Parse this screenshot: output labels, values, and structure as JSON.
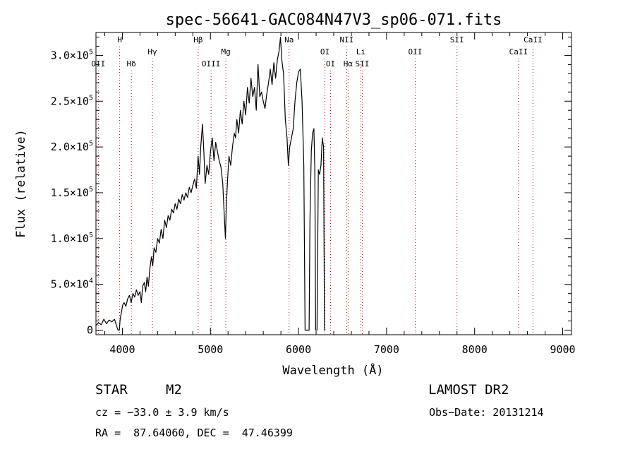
{
  "chart_data": {
    "type": "line",
    "title": "spec-56641-GAC084N47V3_sp06-071.fits",
    "xlabel": "Wavelength (Å)",
    "ylabel": "Flux (relative)",
    "xlim": [
      3700,
      9100
    ],
    "ylim": [
      -5000,
      325000
    ],
    "x_ticks": [
      {
        "value": 4000,
        "label": "4000"
      },
      {
        "value": 5000,
        "label": "5000"
      },
      {
        "value": 6000,
        "label": "6000"
      },
      {
        "value": 7000,
        "label": "7000"
      },
      {
        "value": 8000,
        "label": "8000"
      },
      {
        "value": 9000,
        "label": "9000"
      }
    ],
    "y_ticks": [
      {
        "value": 0,
        "mant": "0",
        "exp": ""
      },
      {
        "value": 50000,
        "mant": "5.0×10",
        "exp": "4"
      },
      {
        "value": 100000,
        "mant": "1.0×10",
        "exp": "5"
      },
      {
        "value": 150000,
        "mant": "1.5×10",
        "exp": "5"
      },
      {
        "value": 200000,
        "mant": "2.0×10",
        "exp": "5"
      },
      {
        "value": 250000,
        "mant": "2.5×10",
        "exp": "5"
      },
      {
        "value": 300000,
        "mant": "3.0×10",
        "exp": "5"
      }
    ],
    "grid": false,
    "line_color": "#000000",
    "marker_line_color": "#d00000",
    "line_markers": [
      {
        "label": "OII",
        "wavelength": 3727,
        "row": 3
      },
      {
        "label": "H",
        "wavelength": 3969,
        "row": 0
      },
      {
        "label": "Hδ",
        "wavelength": 4102,
        "row": 3
      },
      {
        "label": "Hγ",
        "wavelength": 4341,
        "row": 1
      },
      {
        "label": "Hβ",
        "wavelength": 4861,
        "row": 0
      },
      {
        "label": "OIII",
        "wavelength": 5007,
        "row": 3
      },
      {
        "label": "Mg",
        "wavelength": 5175,
        "row": 1
      },
      {
        "label": "Na",
        "wavelength": 5893,
        "row": 0
      },
      {
        "label": "OI",
        "wavelength": 6300,
        "row": 1
      },
      {
        "label": "OI",
        "wavelength": 6364,
        "row": 2
      },
      {
        "label": "NII",
        "wavelength": 6548,
        "row": 0
      },
      {
        "label": "Hα",
        "wavelength": 6563,
        "row": 3
      },
      {
        "label": "Li",
        "wavelength": 6708,
        "row": 1
      },
      {
        "label": "SII",
        "wavelength": 6724,
        "row": 3
      },
      {
        "label": "OII",
        "wavelength": 7325,
        "row": 1
      },
      {
        "label": "SII",
        "wavelength": 7800,
        "row": 0
      },
      {
        "label": "CaII",
        "wavelength": 8498,
        "row": 1
      },
      {
        "label": "CaII",
        "wavelength": 8662,
        "row": 0
      }
    ],
    "series": [
      {
        "points": [
          [
            3700,
            5000
          ],
          [
            3730,
            8000
          ],
          [
            3760,
            6000
          ],
          [
            3790,
            12000
          ],
          [
            3820,
            7000
          ],
          [
            3850,
            11000
          ],
          [
            3880,
            9000
          ],
          [
            3910,
            12000
          ],
          [
            3930,
            6000
          ],
          [
            3950,
            0
          ],
          [
            3965,
            0
          ],
          [
            3975,
            12000
          ],
          [
            3990,
            20000
          ],
          [
            4005,
            28000
          ],
          [
            4020,
            30000
          ],
          [
            4040,
            26000
          ],
          [
            4060,
            34000
          ],
          [
            4080,
            38000
          ],
          [
            4100,
            30000
          ],
          [
            4120,
            40000
          ],
          [
            4140,
            36000
          ],
          [
            4160,
            44000
          ],
          [
            4180,
            38000
          ],
          [
            4200,
            42000
          ],
          [
            4215,
            30000
          ],
          [
            4230,
            48000
          ],
          [
            4250,
            52000
          ],
          [
            4265,
            42000
          ],
          [
            4280,
            58000
          ],
          [
            4295,
            48000
          ],
          [
            4310,
            65000
          ],
          [
            4330,
            80000
          ],
          [
            4345,
            70000
          ],
          [
            4360,
            90000
          ],
          [
            4380,
            85000
          ],
          [
            4400,
            100000
          ],
          [
            4420,
            95000
          ],
          [
            4440,
            110000
          ],
          [
            4460,
            100000
          ],
          [
            4480,
            120000
          ],
          [
            4500,
            112000
          ],
          [
            4520,
            125000
          ],
          [
            4540,
            120000
          ],
          [
            4560,
            132000
          ],
          [
            4580,
            128000
          ],
          [
            4600,
            138000
          ],
          [
            4620,
            132000
          ],
          [
            4640,
            143000
          ],
          [
            4660,
            138000
          ],
          [
            4680,
            148000
          ],
          [
            4700,
            142000
          ],
          [
            4720,
            150000
          ],
          [
            4740,
            145000
          ],
          [
            4760,
            156000
          ],
          [
            4780,
            150000
          ],
          [
            4800,
            158000
          ],
          [
            4820,
            165000
          ],
          [
            4840,
            155000
          ],
          [
            4860,
            190000
          ],
          [
            4875,
            170000
          ],
          [
            4890,
            200000
          ],
          [
            4910,
            225000
          ],
          [
            4925,
            195000
          ],
          [
            4940,
            160000
          ],
          [
            4960,
            180000
          ],
          [
            4980,
            170000
          ],
          [
            5000,
            195000
          ],
          [
            5020,
            210000
          ],
          [
            5040,
            185000
          ],
          [
            5060,
            205000
          ],
          [
            5080,
            195000
          ],
          [
            5100,
            185000
          ],
          [
            5120,
            178000
          ],
          [
            5140,
            160000
          ],
          [
            5160,
            120000
          ],
          [
            5170,
            100000
          ],
          [
            5180,
            135000
          ],
          [
            5195,
            165000
          ],
          [
            5210,
            190000
          ],
          [
            5230,
            180000
          ],
          [
            5250,
            200000
          ],
          [
            5270,
            215000
          ],
          [
            5285,
            210000
          ],
          [
            5300,
            230000
          ],
          [
            5320,
            215000
          ],
          [
            5340,
            240000
          ],
          [
            5360,
            225000
          ],
          [
            5380,
            250000
          ],
          [
            5400,
            235000
          ],
          [
            5420,
            265000
          ],
          [
            5440,
            248000
          ],
          [
            5460,
            275000
          ],
          [
            5480,
            255000
          ],
          [
            5500,
            265000
          ],
          [
            5520,
            240000
          ],
          [
            5540,
            290000
          ],
          [
            5560,
            255000
          ],
          [
            5580,
            260000
          ],
          [
            5600,
            250000
          ],
          [
            5620,
            242000
          ],
          [
            5640,
            258000
          ],
          [
            5660,
            270000
          ],
          [
            5680,
            285000
          ],
          [
            5700,
            268000
          ],
          [
            5720,
            292000
          ],
          [
            5740,
            275000
          ],
          [
            5760,
            295000
          ],
          [
            5780,
            305000
          ],
          [
            5795,
            320000
          ],
          [
            5810,
            295000
          ],
          [
            5830,
            280000
          ],
          [
            5850,
            230000
          ],
          [
            5870,
            210000
          ],
          [
            5885,
            180000
          ],
          [
            5900,
            200000
          ],
          [
            5920,
            210000
          ],
          [
            5940,
            220000
          ],
          [
            5960,
            250000
          ],
          [
            5980,
            270000
          ],
          [
            6000,
            282000
          ],
          [
            6020,
            285000
          ],
          [
            6040,
            250000
          ],
          [
            6060,
            180000
          ],
          [
            6075,
            0
          ],
          [
            6090,
            0
          ],
          [
            6105,
            0
          ],
          [
            6120,
            0
          ],
          [
            6130,
            120000
          ],
          [
            6145,
            195000
          ],
          [
            6160,
            215000
          ],
          [
            6175,
            220000
          ],
          [
            6185,
            175000
          ],
          [
            6195,
            0
          ],
          [
            6210,
            0
          ],
          [
            6225,
            175000
          ],
          [
            6240,
            170000
          ],
          [
            6255,
            180000
          ],
          [
            6270,
            210000
          ],
          [
            6285,
            200000
          ],
          [
            6295,
            0
          ],
          [
            6305,
            0
          ]
        ]
      }
    ]
  },
  "footer": {
    "object_type": "STAR",
    "subclass": "M2",
    "cz": "cz = −33.0 ± 3.9 km/s",
    "radec": "RA =  87.64060, DEC =  47.46399",
    "survey": "LAMOST DR2",
    "obs_date": "Obs−Date: 20131214"
  }
}
